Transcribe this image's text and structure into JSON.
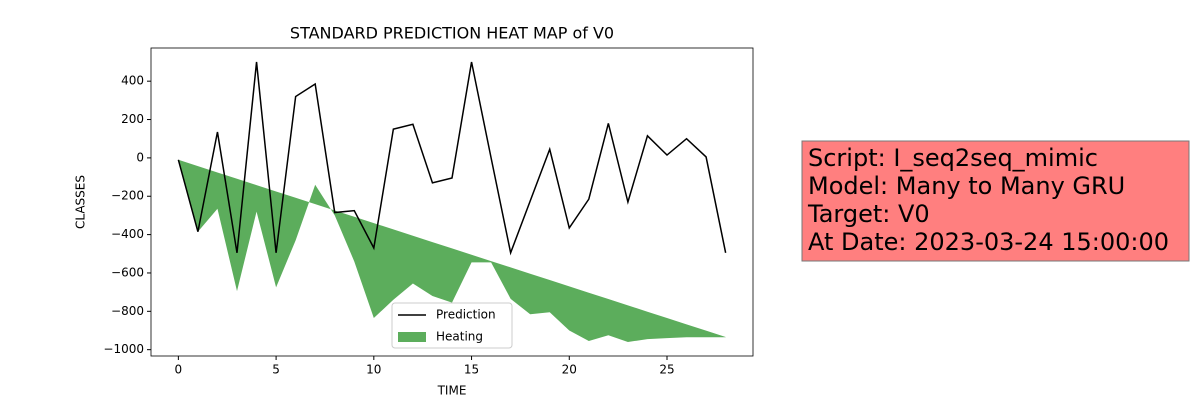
{
  "chart_data": {
    "type": "line",
    "title": "STANDARD PREDICTION HEAT MAP of V0",
    "x_label": "TIME",
    "y_label": "CLASSES",
    "x": [
      0,
      1,
      2,
      3,
      4,
      5,
      6,
      7,
      8,
      9,
      10,
      11,
      12,
      13,
      14,
      15,
      16,
      17,
      18,
      19,
      20,
      21,
      22,
      23,
      24,
      25,
      26,
      27,
      28
    ],
    "series": [
      {
        "name": "Prediction",
        "color": "#000000",
        "values": [
          -10,
          -385,
          135,
          -495,
          500,
          -495,
          320,
          385,
          -285,
          -275,
          -470,
          150,
          175,
          -130,
          -105,
          500,
          0,
          -495,
          -225,
          45,
          -365,
          -215,
          180,
          -230,
          115,
          15,
          100,
          5,
          -495
        ]
      },
      {
        "name": "Heating",
        "type": "area",
        "color": "#339933",
        "values": [
          -10,
          -385,
          -265,
          -695,
          -280,
          -675,
          -430,
          -140,
          -300,
          -540,
          -835,
          -740,
          -655,
          -720,
          -755,
          -545,
          -545,
          -735,
          -815,
          -805,
          -900,
          -955,
          -925,
          -960,
          -945,
          -940,
          -935,
          -935,
          -935
        ],
        "upper": [
          -10,
          -43,
          -76,
          -109,
          -142,
          -175,
          -208,
          -241,
          -274,
          -307,
          -340,
          -373,
          -406,
          -439,
          -472,
          -505,
          -538,
          -571,
          -604,
          -637,
          -670,
          -703,
          -736,
          -769,
          -802,
          -835,
          -868,
          -901,
          -934
        ]
      }
    ],
    "xlim": [
      -1.4,
      29.4
    ],
    "ylim": [
      -1033,
      573
    ],
    "xticks": [
      0,
      5,
      10,
      15,
      20,
      25
    ],
    "yticks": [
      {
        "value": -1000,
        "label": "−1000"
      },
      {
        "value": -800,
        "label": "−800"
      },
      {
        "value": -600,
        "label": "−600"
      },
      {
        "value": -400,
        "label": "−400"
      },
      {
        "value": -200,
        "label": "−200"
      },
      0,
      200,
      400
    ],
    "legend": "lower center",
    "annotation_lines": [
      "Script: I_seq2seq_mimic",
      "Model: Many to Many GRU",
      "Target: V0",
      "At Date: 2023-03-24 15:00:00"
    ],
    "annotation_color": "#ff7f7f"
  }
}
